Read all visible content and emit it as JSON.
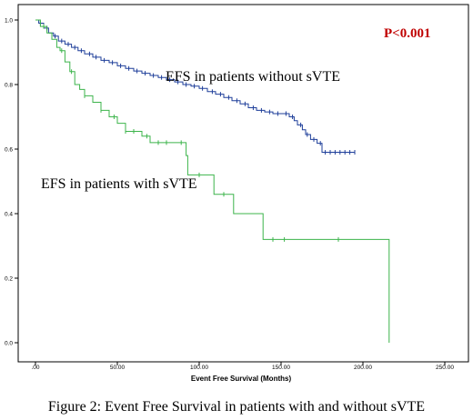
{
  "caption": "Figure 2: Event Free Survival in patients with and without sVTE",
  "chart_data": {
    "type": "line",
    "step": true,
    "title": "",
    "xlabel": "Event Free Survival (Months)",
    "ylabel": "",
    "xlim": [
      0,
      250
    ],
    "ylim": [
      0,
      1.0
    ],
    "xticks": [
      0,
      50,
      100,
      150,
      200,
      250
    ],
    "xtick_labels": [
      ".00",
      "50.00",
      "100.00",
      "150.00",
      "200.00",
      "250.00"
    ],
    "yticks": [
      0,
      0.2,
      0.4,
      0.6,
      0.8,
      1.0
    ],
    "ytick_labels": [
      "0.0",
      "0.2",
      "0.4",
      "0.6",
      "0.8",
      "1.0"
    ],
    "grid": false,
    "annotations": {
      "pvalue": "P<0.001",
      "pvalue_color": "#c00000",
      "label_without": "EFS in patients without sVTE",
      "label_with": "EFS in patients with sVTE"
    },
    "series": [
      {
        "key": "without",
        "color": "#1f3f9a",
        "points": [
          [
            0,
            1.0
          ],
          [
            2,
            0.99
          ],
          [
            5,
            0.975
          ],
          [
            8,
            0.96
          ],
          [
            11,
            0.95
          ],
          [
            14,
            0.935
          ],
          [
            18,
            0.925
          ],
          [
            22,
            0.915
          ],
          [
            26,
            0.905
          ],
          [
            30,
            0.895
          ],
          [
            35,
            0.885
          ],
          [
            40,
            0.875
          ],
          [
            45,
            0.868
          ],
          [
            50,
            0.858
          ],
          [
            55,
            0.85
          ],
          [
            60,
            0.842
          ],
          [
            65,
            0.835
          ],
          [
            70,
            0.828
          ],
          [
            75,
            0.822
          ],
          [
            80,
            0.815
          ],
          [
            85,
            0.808
          ],
          [
            90,
            0.8
          ],
          [
            95,
            0.795
          ],
          [
            100,
            0.788
          ],
          [
            105,
            0.778
          ],
          [
            110,
            0.77
          ],
          [
            115,
            0.76
          ],
          [
            120,
            0.75
          ],
          [
            125,
            0.74
          ],
          [
            130,
            0.728
          ],
          [
            135,
            0.72
          ],
          [
            140,
            0.715
          ],
          [
            145,
            0.71
          ],
          [
            150,
            0.71
          ],
          [
            155,
            0.7
          ],
          [
            158,
            0.688
          ],
          [
            160,
            0.675
          ],
          [
            163,
            0.66
          ],
          [
            165,
            0.645
          ],
          [
            168,
            0.63
          ],
          [
            172,
            0.618
          ],
          [
            175,
            0.59
          ],
          [
            185,
            0.59
          ],
          [
            195,
            0.59
          ]
        ],
        "censor_x": [
          3,
          7,
          12,
          16,
          20,
          24,
          28,
          33,
          37,
          42,
          47,
          52,
          57,
          62,
          67,
          72,
          77,
          82,
          87,
          92,
          97,
          102,
          108,
          113,
          118,
          123,
          128,
          133,
          138,
          143,
          148,
          153,
          157,
          162,
          166,
          170,
          174,
          177,
          180,
          183,
          186,
          189,
          192,
          195
        ]
      },
      {
        "key": "with",
        "color": "#3cb44b",
        "points": [
          [
            0,
            1.0
          ],
          [
            3,
            0.98
          ],
          [
            7,
            0.96
          ],
          [
            10,
            0.94
          ],
          [
            13,
            0.915
          ],
          [
            15,
            0.905
          ],
          [
            18,
            0.87
          ],
          [
            21,
            0.84
          ],
          [
            24,
            0.8
          ],
          [
            27,
            0.785
          ],
          [
            30,
            0.765
          ],
          [
            35,
            0.745
          ],
          [
            40,
            0.72
          ],
          [
            45,
            0.7
          ],
          [
            50,
            0.68
          ],
          [
            55,
            0.655
          ],
          [
            65,
            0.64
          ],
          [
            70,
            0.62
          ],
          [
            90,
            0.62
          ],
          [
            92,
            0.58
          ],
          [
            93,
            0.52
          ],
          [
            108,
            0.52
          ],
          [
            109,
            0.46
          ],
          [
            120,
            0.46
          ],
          [
            121,
            0.4
          ],
          [
            138,
            0.4
          ],
          [
            139,
            0.32
          ],
          [
            216,
            0.32
          ],
          [
            216,
            0.0
          ]
        ],
        "censor_x": [
          5,
          16,
          22,
          30,
          40,
          48,
          55,
          60,
          68,
          75,
          80,
          89,
          100,
          115,
          145,
          152,
          185
        ]
      }
    ]
  }
}
